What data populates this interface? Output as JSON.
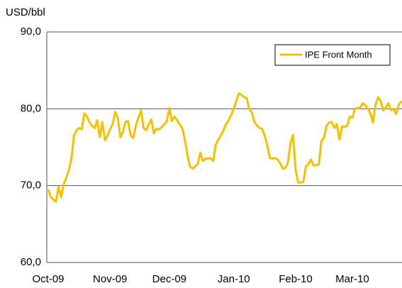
{
  "chart_data": {
    "type": "line",
    "y_label": "USD/bbl",
    "categories": [
      "Oct-09",
      null,
      null,
      null,
      null,
      null,
      null,
      null,
      null,
      null,
      null,
      null,
      null,
      null,
      null,
      null,
      null,
      null,
      null,
      null,
      null,
      null,
      null,
      null,
      "Nov-09",
      null,
      null,
      null,
      null,
      null,
      null,
      null,
      null,
      null,
      null,
      null,
      null,
      null,
      null,
      null,
      null,
      null,
      null,
      null,
      null,
      null,
      null,
      "Dec-09",
      null,
      null,
      null,
      null,
      null,
      null,
      null,
      null,
      null,
      null,
      null,
      null,
      null,
      null,
      null,
      null,
      null,
      null,
      null,
      null,
      null,
      null,
      null,
      null,
      "Jan-10",
      null,
      null,
      null,
      null,
      null,
      null,
      null,
      null,
      null,
      null,
      null,
      null,
      null,
      null,
      null,
      null,
      null,
      null,
      null,
      null,
      null,
      null,
      null,
      "Feb-10",
      null,
      null,
      null,
      null,
      null,
      null,
      null,
      null,
      null,
      null,
      null,
      null,
      null,
      null,
      null,
      null,
      null,
      null,
      null,
      null,
      null,
      "Mar-10",
      null,
      null,
      null,
      null,
      null,
      null,
      null,
      null,
      null,
      null,
      null,
      null,
      null,
      null,
      null,
      null,
      null,
      null,
      null
    ],
    "series": [
      {
        "name": "IPE Front Month",
        "color": "#f5c000",
        "values": [
          69.5,
          68.5,
          68.2,
          67.9,
          69.8,
          68.5,
          70.2,
          71.0,
          72.0,
          73.5,
          76.5,
          77.2,
          77.5,
          77.3,
          79.4,
          79.0,
          78.2,
          77.8,
          77.5,
          78.5,
          76.3,
          78.3,
          75.9,
          76.5,
          77.3,
          78.0,
          79.6,
          78.8,
          76.3,
          77.0,
          78.3,
          78.4,
          76.5,
          76.2,
          77.8,
          78.8,
          79.8,
          77.5,
          77.2,
          78.0,
          78.6,
          76.8,
          77.4,
          77.3,
          77.6,
          78.0,
          78.3,
          80.1,
          78.4,
          79.0,
          78.5,
          78.0,
          77.5,
          76.0,
          74.0,
          72.5,
          72.2,
          72.5,
          72.8,
          74.3,
          73.2,
          73.5,
          73.5,
          73.6,
          73.2,
          75.3,
          76.0,
          76.5,
          77.2,
          78.0,
          78.5,
          79.2,
          80.0,
          81.0,
          82.0,
          81.8,
          81.5,
          81.4,
          80.0,
          79.5,
          78.3,
          77.8,
          77.5,
          77.4,
          76.5,
          75.2,
          73.6,
          73.5,
          73.6,
          73.4,
          72.9,
          72.2,
          72.3,
          73.0,
          75.5,
          76.6,
          72.0,
          70.4,
          70.4,
          70.5,
          72.5,
          72.8,
          73.4,
          72.6,
          72.7,
          72.7,
          75.8,
          76.2,
          77.8,
          78.2,
          78.3,
          77.5,
          78.0,
          76.0,
          77.7,
          77.6,
          77.8,
          79.0,
          78.8,
          80.0,
          80.1,
          80.1,
          80.7,
          80.5,
          80.0,
          79.4,
          78.2,
          80.5,
          81.5,
          81.0,
          79.8,
          80.2,
          80.7,
          79.8,
          80.0,
          79.3,
          80.5,
          81.0
        ]
      }
    ],
    "ylim": [
      60,
      90
    ],
    "yticks": [
      {
        "value": 60,
        "label": "60,0"
      },
      {
        "value": 70,
        "label": "70,0"
      },
      {
        "value": 80,
        "label": "80,0"
      },
      {
        "value": 90,
        "label": "90,0"
      }
    ],
    "grid": true,
    "legend": "upper right"
  }
}
